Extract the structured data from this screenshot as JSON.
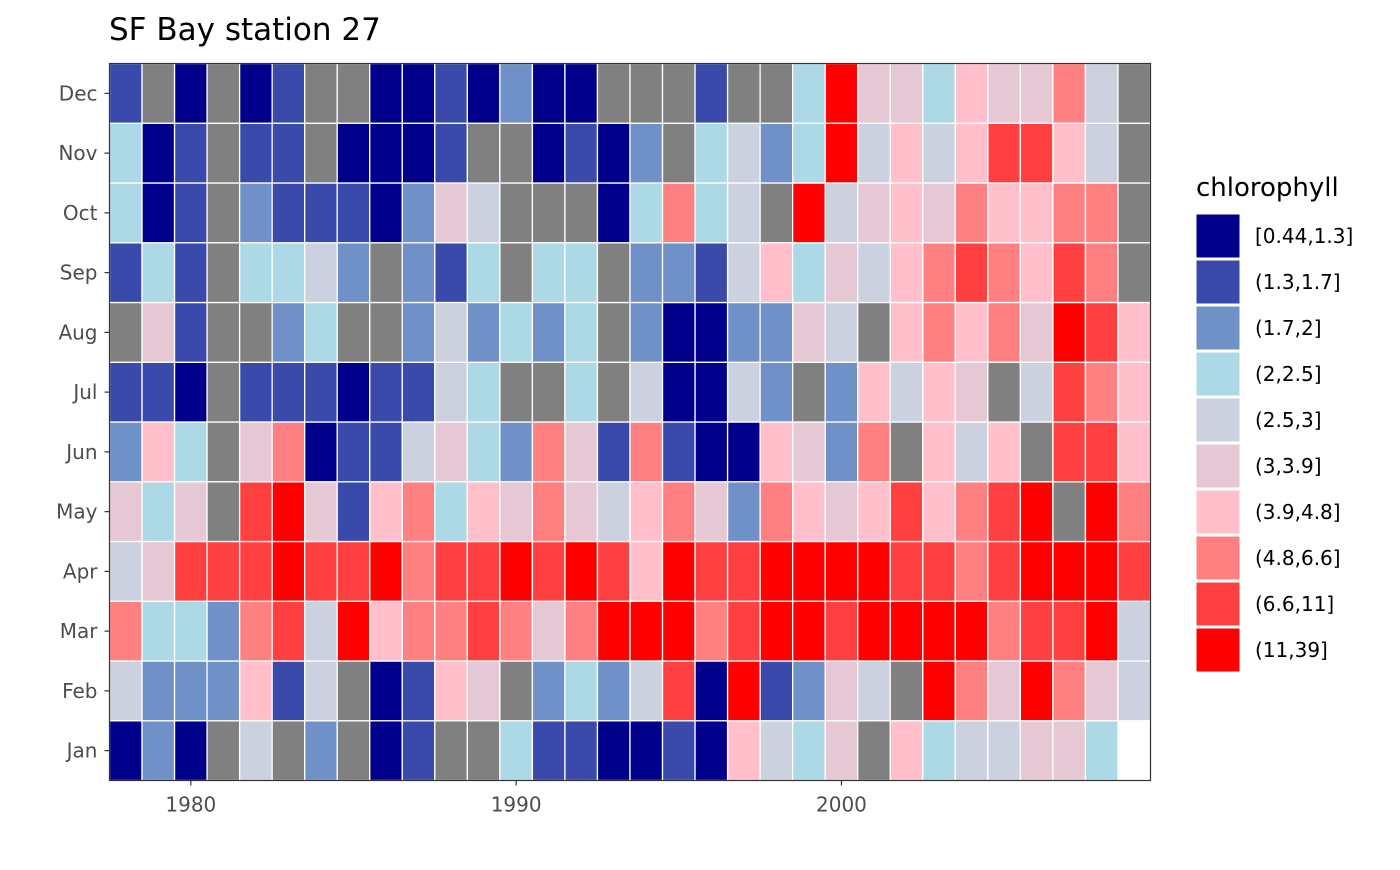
{
  "chart_data": {
    "type": "heatmap",
    "title": "SF Bay station 27",
    "xlabel": "",
    "ylabel": "",
    "x_range": [
      1977.5,
      2009.5
    ],
    "x_ticks": [
      1980,
      1990,
      2000
    ],
    "months": [
      "Jan",
      "Feb",
      "Mar",
      "Apr",
      "May",
      "Jun",
      "Jul",
      "Aug",
      "Sep",
      "Oct",
      "Nov",
      "Dec"
    ],
    "years": [
      1978,
      1979,
      1980,
      1981,
      1982,
      1983,
      1984,
      1985,
      1986,
      1987,
      1988,
      1989,
      1990,
      1991,
      1992,
      1993,
      1994,
      1995,
      1996,
      1997,
      1998,
      1999,
      2000,
      2001,
      2002,
      2003,
      2004,
      2005,
      2006,
      2007,
      2008,
      2009
    ],
    "missing_color": "#808080",
    "grid": true,
    "legend": {
      "title": "chlorophyll",
      "position": "right",
      "bins": [
        {
          "label": "[0.44,1.3]",
          "color": "#00008B"
        },
        {
          "label": "(1.3,1.7]",
          "color": "#3A4AAA"
        },
        {
          "label": "(1.7,2]",
          "color": "#7090C8"
        },
        {
          "label": "(2,2.5]",
          "color": "#ADD8E6"
        },
        {
          "label": "(2.5,3]",
          "color": "#CBD1DE"
        },
        {
          "label": "(3,3.9]",
          "color": "#E5C8D4"
        },
        {
          "label": "(3.9,4.8]",
          "color": "#FFC0CB"
        },
        {
          "label": "(4.8,6.6]",
          "color": "#FF8080"
        },
        {
          "label": "(6.6,11]",
          "color": "#FF4040"
        },
        {
          "label": "(11,39]",
          "color": "#FF0000"
        }
      ]
    },
    "bin_index_note": "cells: value is bin index 0-9 into legend.bins, 'NA' = missing (grey), null = no tile",
    "cells": {
      "Dec": [
        1,
        "NA",
        0,
        "NA",
        0,
        1,
        "NA",
        "NA",
        0,
        0,
        1,
        0,
        2,
        0,
        0,
        "NA",
        "NA",
        "NA",
        1,
        "NA",
        "NA",
        3,
        9,
        5,
        5,
        3,
        6,
        5,
        5,
        7,
        4,
        "NA"
      ],
      "Nov": [
        3,
        0,
        1,
        "NA",
        1,
        1,
        "NA",
        0,
        0,
        0,
        1,
        "NA",
        "NA",
        0,
        1,
        0,
        2,
        "NA",
        3,
        4,
        2,
        3,
        9,
        4,
        6,
        4,
        6,
        8,
        8,
        6,
        4,
        "NA"
      ],
      "Oct": [
        3,
        0,
        1,
        "NA",
        2,
        1,
        1,
        1,
        0,
        2,
        5,
        4,
        "NA",
        "NA",
        "NA",
        0,
        3,
        7,
        3,
        4,
        "NA",
        9,
        4,
        5,
        6,
        5,
        7,
        6,
        6,
        7,
        7,
        "NA"
      ],
      "Sep": [
        1,
        3,
        1,
        "NA",
        3,
        3,
        4,
        2,
        "NA",
        2,
        1,
        3,
        "NA",
        3,
        3,
        "NA",
        2,
        2,
        1,
        4,
        6,
        3,
        5,
        4,
        6,
        7,
        8,
        7,
        6,
        8,
        7,
        "NA"
      ],
      "Aug": [
        "NA",
        5,
        1,
        "NA",
        "NA",
        2,
        3,
        "NA",
        "NA",
        2,
        4,
        2,
        3,
        2,
        3,
        "NA",
        2,
        0,
        0,
        2,
        2,
        5,
        4,
        "NA",
        6,
        7,
        6,
        7,
        5,
        9,
        8,
        6
      ],
      "Jul": [
        1,
        1,
        0,
        "NA",
        1,
        1,
        1,
        0,
        1,
        1,
        4,
        3,
        "NA",
        "NA",
        3,
        "NA",
        4,
        0,
        0,
        4,
        2,
        "NA",
        2,
        6,
        4,
        6,
        5,
        "NA",
        4,
        8,
        7,
        6
      ],
      "Jun": [
        2,
        6,
        3,
        "NA",
        5,
        7,
        0,
        1,
        1,
        4,
        5,
        3,
        2,
        7,
        5,
        1,
        7,
        1,
        0,
        0,
        6,
        5,
        2,
        7,
        "NA",
        6,
        4,
        6,
        "NA",
        8,
        8,
        6
      ],
      "May": [
        5,
        3,
        5,
        "NA",
        8,
        9,
        5,
        1,
        6,
        7,
        3,
        6,
        5,
        7,
        5,
        4,
        6,
        7,
        5,
        2,
        7,
        6,
        5,
        6,
        8,
        6,
        7,
        8,
        9,
        "NA",
        9,
        7
      ],
      "Apr": [
        4,
        5,
        8,
        8,
        8,
        9,
        8,
        8,
        9,
        7,
        8,
        8,
        9,
        8,
        9,
        8,
        6,
        9,
        8,
        8,
        9,
        9,
        9,
        9,
        8,
        8,
        7,
        8,
        9,
        9,
        9,
        8
      ],
      "Mar": [
        7,
        3,
        3,
        2,
        7,
        8,
        4,
        9,
        6,
        7,
        7,
        8,
        7,
        5,
        7,
        9,
        9,
        9,
        7,
        8,
        9,
        9,
        8,
        9,
        9,
        9,
        9,
        7,
        8,
        8,
        9,
        4
      ],
      "Feb": [
        4,
        2,
        2,
        2,
        6,
        1,
        4,
        "NA",
        0,
        1,
        6,
        5,
        "NA",
        2,
        3,
        2,
        4,
        8,
        0,
        9,
        1,
        2,
        5,
        4,
        "NA",
        9,
        7,
        5,
        9,
        7,
        5,
        4
      ],
      "Jan": [
        0,
        2,
        0,
        "NA",
        4,
        "NA",
        2,
        "NA",
        0,
        1,
        "NA",
        "NA",
        3,
        1,
        1,
        0,
        0,
        1,
        0,
        6,
        4,
        3,
        5,
        "NA",
        6,
        3,
        4,
        4,
        5,
        5,
        3,
        null
      ]
    }
  }
}
